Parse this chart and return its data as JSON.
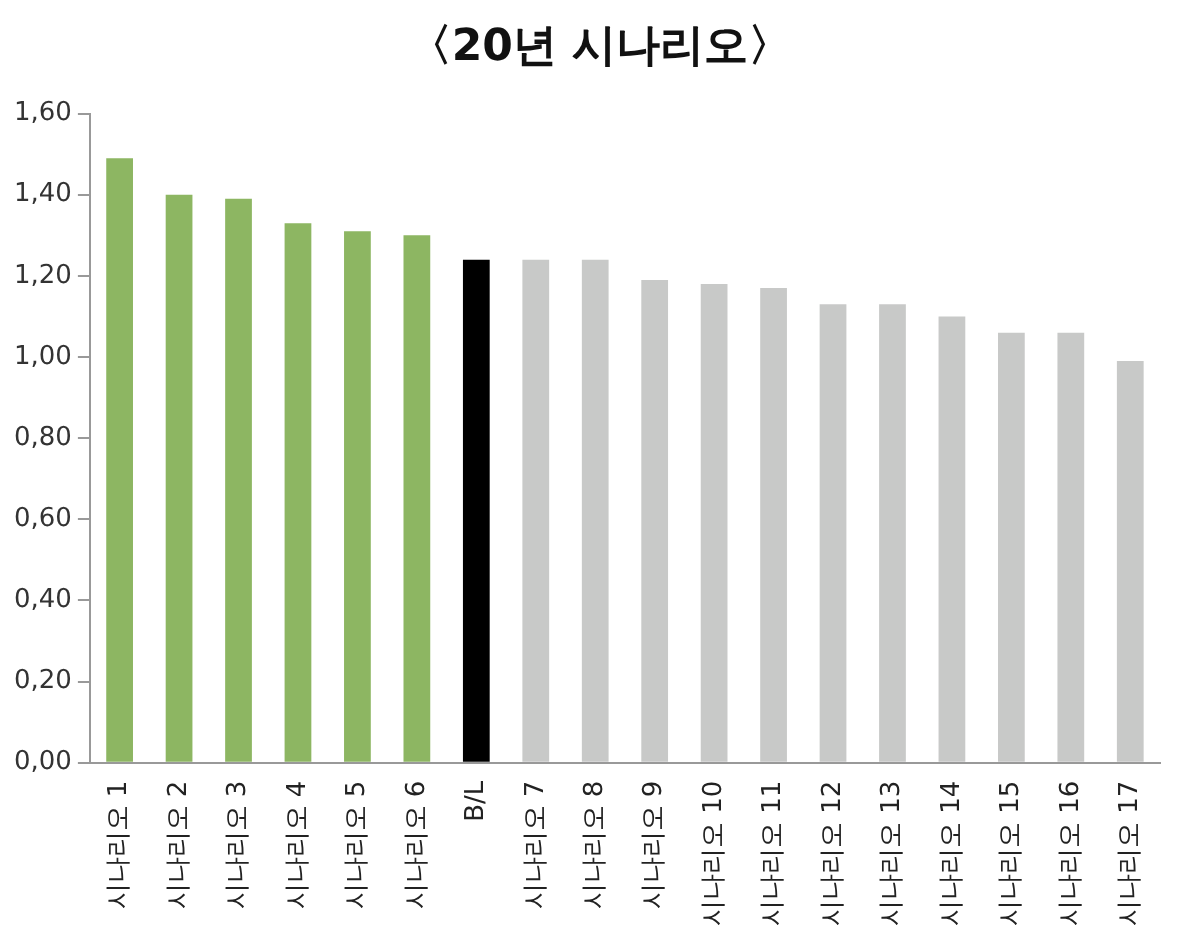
{
  "chart_data": {
    "type": "bar",
    "title": "〈20년 시나리오〉",
    "categories": [
      "시나리오 1",
      "시나리오 2",
      "시나리오 3",
      "시나리오 4",
      "시나리오 5",
      "시나리오 6",
      "B/L",
      "시나리오 7",
      "시나리오 8",
      "시나리오 9",
      "시나리오 10",
      "시나리오 11",
      "시나리오 12",
      "시나리오 13",
      "시나리오 14",
      "시나리오 15",
      "시나리오 16",
      "시나리오 17"
    ],
    "values": [
      1.49,
      1.4,
      1.39,
      1.33,
      1.31,
      1.3,
      1.24,
      1.24,
      1.24,
      1.19,
      1.18,
      1.17,
      1.13,
      1.13,
      1.1,
      1.06,
      1.06,
      0.99
    ],
    "colors": [
      "#8db662",
      "#8db662",
      "#8db662",
      "#8db662",
      "#8db662",
      "#8db662",
      "#000000",
      "#c8c9c8",
      "#c8c9c8",
      "#c8c9c8",
      "#c8c9c8",
      "#c8c9c8",
      "#c8c9c8",
      "#c8c9c8",
      "#c8c9c8",
      "#c8c9c8",
      "#c8c9c8",
      "#c8c9c8"
    ],
    "ylim": [
      0,
      1.6
    ],
    "yticks": [
      {
        "value": 0,
        "label": "0,00"
      },
      {
        "value": 0.2,
        "label": "0,20"
      },
      {
        "value": 0.4,
        "label": "0,40"
      },
      {
        "value": 0.6,
        "label": "0,60"
      },
      {
        "value": 0.8,
        "label": "0,80"
      },
      {
        "value": 1.0,
        "label": "1,00"
      },
      {
        "value": 1.2,
        "label": "1,20"
      },
      {
        "value": 1.4,
        "label": "1,40"
      },
      {
        "value": 1.6,
        "label": "1,60"
      }
    ],
    "grid": false,
    "legend": false
  }
}
